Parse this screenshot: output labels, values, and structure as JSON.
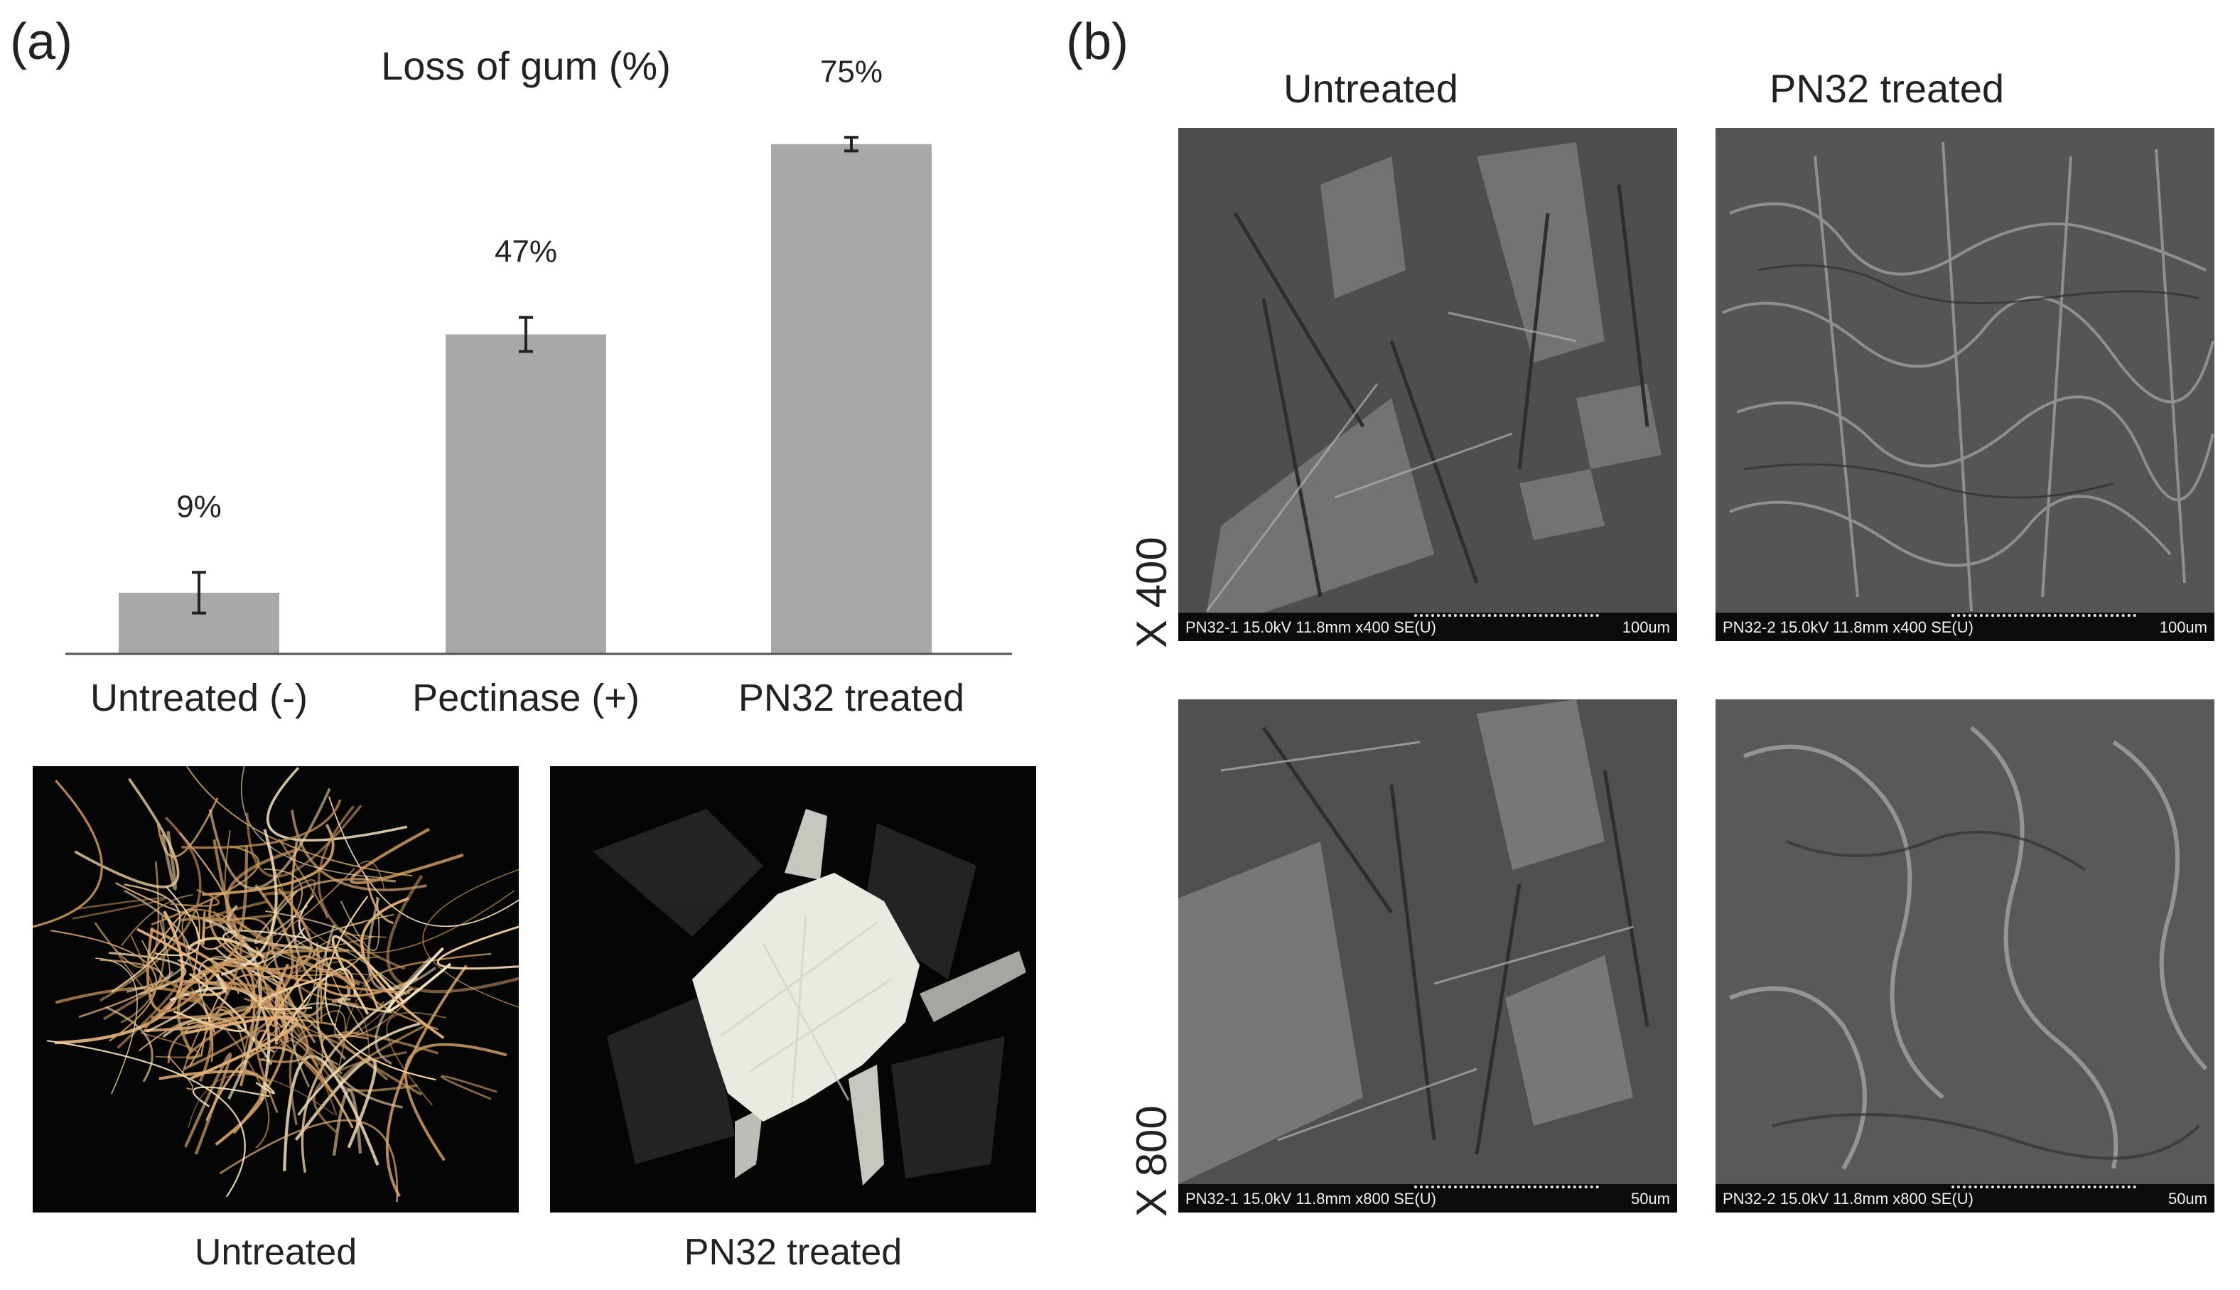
{
  "panel_a": {
    "label": "(a)"
  },
  "panel_b": {
    "label": "(b)"
  },
  "chart_data": {
    "type": "bar",
    "title": "Loss of gum (%)",
    "categories": [
      "Untreated (-)",
      "Pectinase (+)",
      "PN32 treated"
    ],
    "values": [
      9,
      47,
      75
    ],
    "errors": [
      3,
      2.5,
      1
    ],
    "value_labels": [
      "9%",
      "47%",
      "75%"
    ],
    "ylim": [
      0,
      80
    ],
    "xlabel": "",
    "ylabel": "",
    "grid": false,
    "bar_color": "#a8a8a8",
    "error_color": "#222222"
  },
  "photos": {
    "untreated_caption": "Untreated",
    "treated_caption": "PN32 treated",
    "fiber_color": "#d9a86c"
  },
  "sem": {
    "col_untreated": "Untreated",
    "col_treated": "PN32 treated",
    "row_400": "X 400",
    "row_800": "X 800",
    "img_400_untreated": {
      "info": "PN32-1 15.0kV 11.8mm x400 SE(U)",
      "scale": "100um"
    },
    "img_400_treated": {
      "info": "PN32-2 15.0kV 11.8mm x400 SE(U)",
      "scale": "100um"
    },
    "img_800_untreated": {
      "info": "PN32-1 15.0kV 11.8mm x800 SE(U)",
      "scale": "50um"
    },
    "img_800_treated": {
      "info": "PN32-2 15.0kV 11.8mm x800 SE(U)",
      "scale": "50um"
    }
  }
}
